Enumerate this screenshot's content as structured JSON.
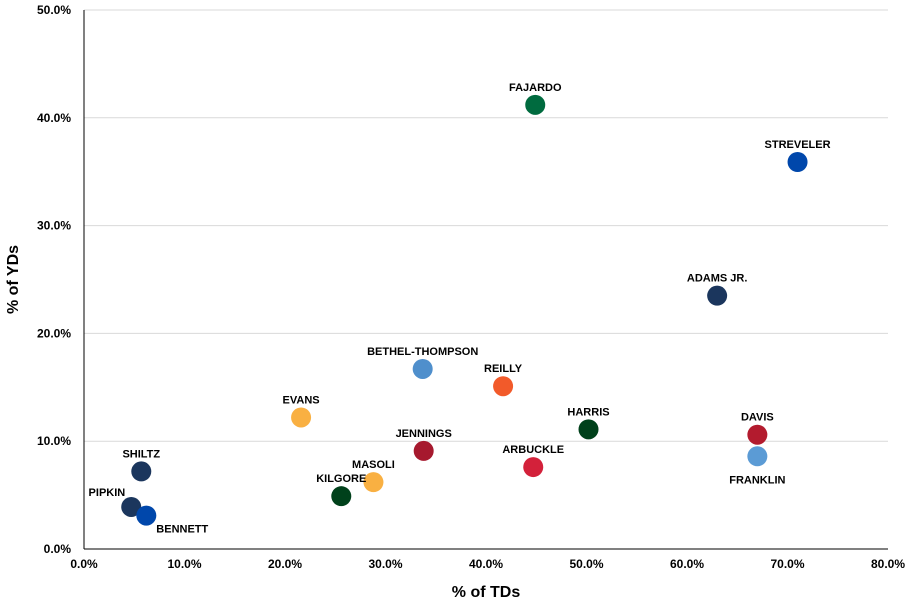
{
  "chart_data": {
    "type": "scatter",
    "xlabel": "% of TDs",
    "ylabel": "% of YDs",
    "xlim": [
      0,
      80
    ],
    "ylim": [
      0,
      50
    ],
    "x_ticks": [
      "0.0%",
      "10.0%",
      "20.0%",
      "30.0%",
      "40.0%",
      "50.0%",
      "60.0%",
      "70.0%",
      "80.0%"
    ],
    "y_ticks": [
      "0.0%",
      "10.0%",
      "20.0%",
      "30.0%",
      "40.0%",
      "50.0%"
    ],
    "grid": "horizontal",
    "points": [
      {
        "label": "FAJARDO",
        "x": 44.9,
        "y": 41.2,
        "color": "#006b3f"
      },
      {
        "label": "STREVELER",
        "x": 71.0,
        "y": 35.9,
        "color": "#0047ab"
      },
      {
        "label": "ADAMS JR.",
        "x": 63.0,
        "y": 23.5,
        "color": "#1b365d"
      },
      {
        "label": "BETHEL-THOMPSON",
        "x": 33.7,
        "y": 16.7,
        "color": "#4f8fcc"
      },
      {
        "label": "REILLY",
        "x": 41.7,
        "y": 15.1,
        "color": "#f25a2a"
      },
      {
        "label": "EVANS",
        "x": 21.6,
        "y": 12.2,
        "color": "#f9b042"
      },
      {
        "label": "HARRIS",
        "x": 50.2,
        "y": 11.1,
        "color": "#00411b"
      },
      {
        "label": "DAVIS",
        "x": 67.0,
        "y": 10.6,
        "color": "#b31b2e"
      },
      {
        "label": "JENNINGS",
        "x": 33.8,
        "y": 9.1,
        "color": "#a6192e"
      },
      {
        "label": "FRANKLIN",
        "x": 67.0,
        "y": 8.6,
        "color": "#5b9bd5"
      },
      {
        "label": "ARBUCKLE",
        "x": 44.7,
        "y": 7.6,
        "color": "#d3213a"
      },
      {
        "label": "SHILTZ",
        "x": 5.7,
        "y": 7.2,
        "color": "#1b365d"
      },
      {
        "label": "MASOLI",
        "x": 28.8,
        "y": 6.2,
        "color": "#f9b042"
      },
      {
        "label": "KILGORE",
        "x": 25.6,
        "y": 4.9,
        "color": "#00411b"
      },
      {
        "label": "PIPKIN",
        "x": 4.7,
        "y": 3.9,
        "color": "#1b365d"
      },
      {
        "label": "BENNETT",
        "x": 6.2,
        "y": 3.1,
        "color": "#0047ab"
      }
    ]
  }
}
